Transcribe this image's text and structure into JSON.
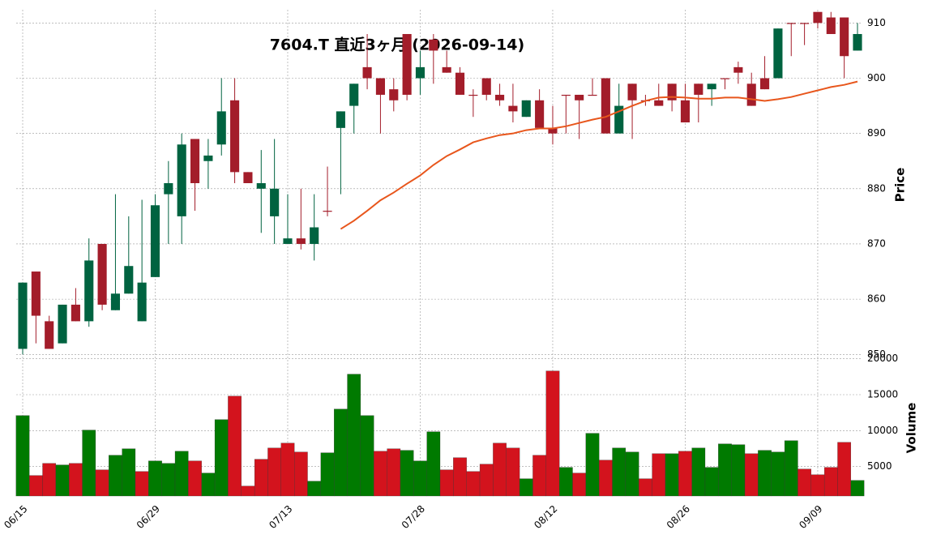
{
  "chart_data": {
    "type": "candlestick",
    "title": "7604.T 直近3ヶ月 (2026-09-14)",
    "ylabel": "Price",
    "categories": [
      "06/15",
      null,
      null,
      null,
      null,
      null,
      null,
      null,
      null,
      null,
      "06/29",
      null,
      null,
      null,
      null,
      null,
      null,
      null,
      null,
      null,
      "07/13",
      null,
      null,
      null,
      null,
      null,
      null,
      null,
      null,
      null,
      "07/28",
      null,
      null,
      null,
      null,
      null,
      null,
      null,
      null,
      null,
      "08/12",
      null,
      null,
      null,
      null,
      null,
      null,
      null,
      null,
      null,
      "08/26",
      null,
      null,
      null,
      null,
      null,
      null,
      null,
      null,
      null,
      "09/09",
      null,
      null,
      null
    ],
    "open": [
      851,
      865,
      856,
      852,
      859,
      856,
      870,
      858,
      861,
      856,
      864,
      879,
      875,
      889,
      885,
      888,
      896,
      883,
      880,
      875,
      870,
      871,
      870,
      876,
      891,
      895,
      902,
      900,
      898,
      908,
      900,
      907,
      902,
      901,
      897,
      900,
      897,
      895,
      893,
      896,
      891,
      897,
      897,
      897,
      900,
      890,
      899,
      896,
      896,
      899,
      896,
      899,
      898,
      900,
      902,
      899,
      900,
      900,
      910,
      910,
      912,
      911,
      911,
      905
    ],
    "high": [
      863,
      865,
      857,
      859,
      862,
      871,
      870,
      879,
      875,
      878,
      879,
      885,
      890,
      889,
      889,
      900,
      900,
      883,
      887,
      889,
      879,
      880,
      879,
      884,
      894,
      899,
      908,
      900,
      900,
      908,
      905,
      908,
      905,
      902,
      898,
      900,
      899,
      899,
      896,
      898,
      895,
      897,
      897,
      900,
      900,
      899,
      899,
      897,
      899,
      899,
      899,
      899,
      899,
      900,
      903,
      901,
      904,
      909,
      910,
      910,
      912,
      912,
      911,
      910
    ],
    "low": [
      850,
      852,
      851,
      852,
      856,
      855,
      858,
      858,
      861,
      856,
      864,
      870,
      870,
      876,
      880,
      886,
      881,
      881,
      872,
      870,
      870,
      869,
      867,
      875,
      879,
      890,
      898,
      890,
      894,
      896,
      897,
      899,
      901,
      897,
      893,
      896,
      895,
      892,
      893,
      891,
      888,
      890,
      889,
      897,
      890,
      890,
      889,
      895,
      895,
      894,
      892,
      892,
      895,
      898,
      899,
      895,
      898,
      900,
      904,
      906,
      909,
      908,
      900,
      905
    ],
    "close": [
      863,
      857,
      851,
      859,
      856,
      867,
      859,
      861,
      866,
      863,
      877,
      881,
      888,
      881,
      886,
      894,
      883,
      881,
      881,
      880,
      871,
      870,
      873,
      876,
      894,
      899,
      900,
      897,
      896,
      897,
      902,
      905,
      901,
      897,
      897,
      897,
      896,
      894,
      896,
      891,
      890,
      897,
      896,
      897,
      890,
      895,
      896,
      896,
      895,
      896,
      892,
      897,
      899,
      900,
      901,
      895,
      898,
      909,
      910,
      910,
      910,
      908,
      904,
      908
    ],
    "up_color": "#006340",
    "down_color": "#a31d2a",
    "ylim": [
      849.6,
      912.4
    ],
    "yticks": [
      850,
      860,
      870,
      880,
      890,
      900,
      910
    ],
    "grid": true,
    "ma": {
      "color": "#e8561c",
      "values": [
        null,
        null,
        null,
        null,
        null,
        null,
        null,
        null,
        null,
        null,
        null,
        null,
        null,
        null,
        null,
        null,
        null,
        null,
        null,
        null,
        null,
        null,
        null,
        null,
        872.7,
        874.2,
        876.0,
        877.9,
        879.3,
        880.9,
        882.4,
        884.3,
        885.9,
        887.1,
        888.4,
        889.1,
        889.7,
        890.0,
        890.6,
        890.9,
        890.9,
        891.3,
        891.9,
        892.5,
        893.0,
        894.0,
        895.0,
        895.9,
        896.5,
        896.6,
        896.5,
        896.3,
        896.3,
        896.5,
        896.5,
        896.2,
        895.9,
        896.2,
        896.6,
        897.2,
        897.8,
        898.4,
        898.8,
        899.4
      ]
    },
    "volume": {
      "ylabel": "Volume",
      "up_color": "#007a00",
      "down_color": "#d3131d",
      "ylim": [
        900,
        20300
      ],
      "yticks": [
        5000,
        10000,
        15000,
        20000
      ],
      "values": [
        12100,
        3760,
        5450,
        5230,
        5450,
        10080,
        4550,
        6580,
        7480,
        4320,
        5790,
        5450,
        7140,
        5790,
        4100,
        11540,
        14810,
        2290,
        6020,
        7590,
        8270,
        7030,
        2970,
        6920,
        13000,
        17860,
        12100,
        7140,
        7480,
        7260,
        5790,
        9850,
        4550,
        6240,
        4320,
        5340,
        8270,
        7590,
        3310,
        6580,
        18310,
        4890,
        4100,
        9630,
        5900,
        7590,
        7030,
        3310,
        6800,
        6800,
        7140,
        7590,
        4890,
        8160,
        8050,
        6800,
        7260,
        7030,
        8610,
        4660,
        3870,
        4890,
        8380,
        3080
      ]
    }
  }
}
